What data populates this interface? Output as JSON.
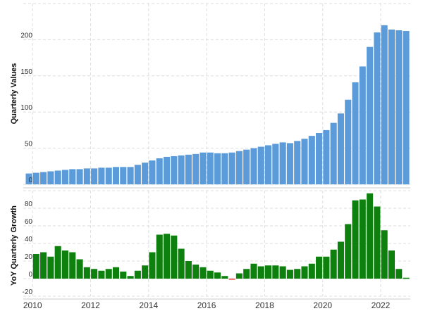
{
  "chart_data": [
    {
      "type": "bar",
      "y_label": "Quarterly Values",
      "color": "#5b9bd9",
      "x": [
        2009.75,
        2010,
        2010.25,
        2010.5,
        2010.75,
        2011,
        2011.25,
        2011.5,
        2011.75,
        2012,
        2012.25,
        2012.5,
        2012.75,
        2013,
        2013.25,
        2013.5,
        2013.75,
        2014,
        2014.25,
        2014.5,
        2014.75,
        2015,
        2015.25,
        2015.5,
        2015.75,
        2016,
        2016.25,
        2016.5,
        2016.75,
        2017,
        2017.25,
        2017.5,
        2017.75,
        2018,
        2018.25,
        2018.5,
        2018.75,
        2019,
        2019.25,
        2019.5,
        2019.75,
        2020,
        2020.25,
        2020.5,
        2020.75,
        2021,
        2021.25,
        2021.5,
        2021.75,
        2022,
        2022.25,
        2022.5,
        2022.75
      ],
      "values": [
        15,
        16,
        17,
        18,
        19,
        20,
        21,
        21,
        22,
        22,
        23,
        23,
        24,
        24,
        24,
        27,
        30,
        33,
        36,
        38,
        39,
        40,
        41,
        42,
        44,
        44,
        43,
        43,
        44,
        46,
        48,
        50,
        52,
        54,
        56,
        58,
        57,
        60,
        63,
        67,
        71,
        75,
        85,
        98,
        117,
        141,
        163,
        190,
        210,
        220,
        214,
        213,
        212
      ],
      "xlim": [
        2009.68,
        2023.02
      ],
      "ylim": [
        0,
        250
      ],
      "yticks": [
        0,
        50,
        100,
        150,
        200
      ],
      "grid": true
    },
    {
      "type": "bar",
      "y_label": "YoY Quarterly Growth",
      "color": "#0e800e",
      "negative_color": "#e03030",
      "x": [
        2009.75,
        2010,
        2010.25,
        2010.5,
        2010.75,
        2011,
        2011.25,
        2011.5,
        2011.75,
        2012,
        2012.25,
        2012.5,
        2012.75,
        2013,
        2013.25,
        2013.5,
        2013.75,
        2014,
        2014.25,
        2014.5,
        2014.75,
        2015,
        2015.25,
        2015.5,
        2015.75,
        2016,
        2016.25,
        2016.5,
        2016.75,
        2017,
        2017.25,
        2017.5,
        2017.75,
        2018,
        2018.25,
        2018.5,
        2018.75,
        2019,
        2019.25,
        2019.5,
        2019.75,
        2020,
        2020.25,
        2020.5,
        2020.75,
        2021,
        2021.25,
        2021.5,
        2021.75,
        2022,
        2022.25,
        2022.5,
        2022.75
      ],
      "values": [
        null,
        28,
        30,
        25,
        37,
        32,
        30,
        22,
        13,
        11,
        9,
        11,
        13,
        8,
        3,
        9,
        15,
        30,
        50,
        51,
        49,
        34,
        20,
        16,
        13,
        9,
        7,
        3,
        -1,
        6,
        11,
        17,
        14,
        15,
        15,
        14,
        10,
        11,
        14,
        17,
        25,
        25,
        33,
        42,
        62,
        89,
        90,
        97,
        82,
        55,
        32,
        11,
        1
      ],
      "xlim": [
        2009.68,
        2023.02
      ],
      "ylim": [
        -20,
        100
      ],
      "yticks": [
        -20,
        0,
        20,
        40,
        60,
        80
      ],
      "xticks": [
        2010,
        2012,
        2014,
        2016,
        2018,
        2020,
        2022
      ],
      "grid": true
    }
  ]
}
